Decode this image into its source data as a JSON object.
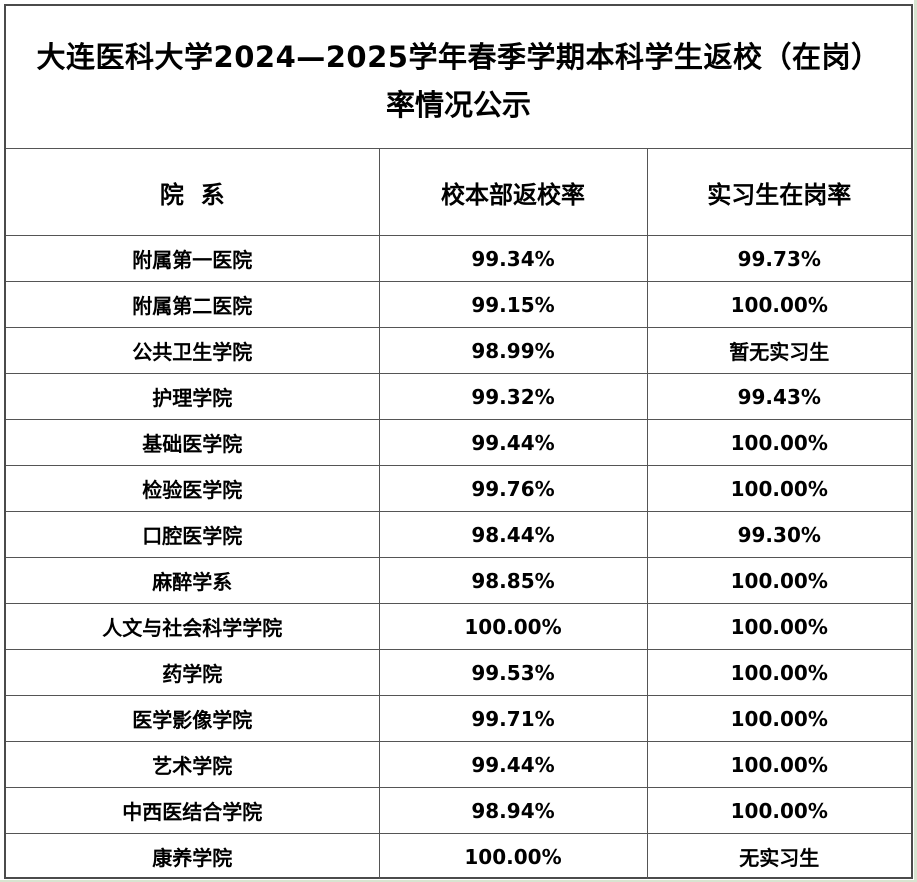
{
  "title": {
    "line1": "大连医科大学2024—2025学年春季学期本科学生返校（在岗）",
    "line2": "率情况公示"
  },
  "columns": [
    "院  系",
    "校本部返校率",
    "实习生在岗率"
  ],
  "rows": [
    {
      "dept": "附属第一医院",
      "return_rate": "99.34%",
      "intern_rate": "99.73%"
    },
    {
      "dept": "附属第二医院",
      "return_rate": "99.15%",
      "intern_rate": "100.00%"
    },
    {
      "dept": "公共卫生学院",
      "return_rate": "98.99%",
      "intern_rate": "暂无实习生"
    },
    {
      "dept": "护理学院",
      "return_rate": "99.32%",
      "intern_rate": "99.43%"
    },
    {
      "dept": "基础医学院",
      "return_rate": "99.44%",
      "intern_rate": "100.00%"
    },
    {
      "dept": "检验医学院",
      "return_rate": "99.76%",
      "intern_rate": "100.00%"
    },
    {
      "dept": "口腔医学院",
      "return_rate": "98.44%",
      "intern_rate": "99.30%"
    },
    {
      "dept": "麻醉学系",
      "return_rate": "98.85%",
      "intern_rate": "100.00%"
    },
    {
      "dept": "人文与社会科学学院",
      "return_rate": "100.00%",
      "intern_rate": "100.00%"
    },
    {
      "dept": "药学院",
      "return_rate": "99.53%",
      "intern_rate": "100.00%"
    },
    {
      "dept": "医学影像学院",
      "return_rate": "99.71%",
      "intern_rate": "100.00%"
    },
    {
      "dept": "艺术学院",
      "return_rate": "99.44%",
      "intern_rate": "100.00%"
    },
    {
      "dept": "中西医结合学院",
      "return_rate": "98.94%",
      "intern_rate": "100.00%"
    },
    {
      "dept": "康养学院",
      "return_rate": "100.00%",
      "intern_rate": "无实习生"
    }
  ]
}
